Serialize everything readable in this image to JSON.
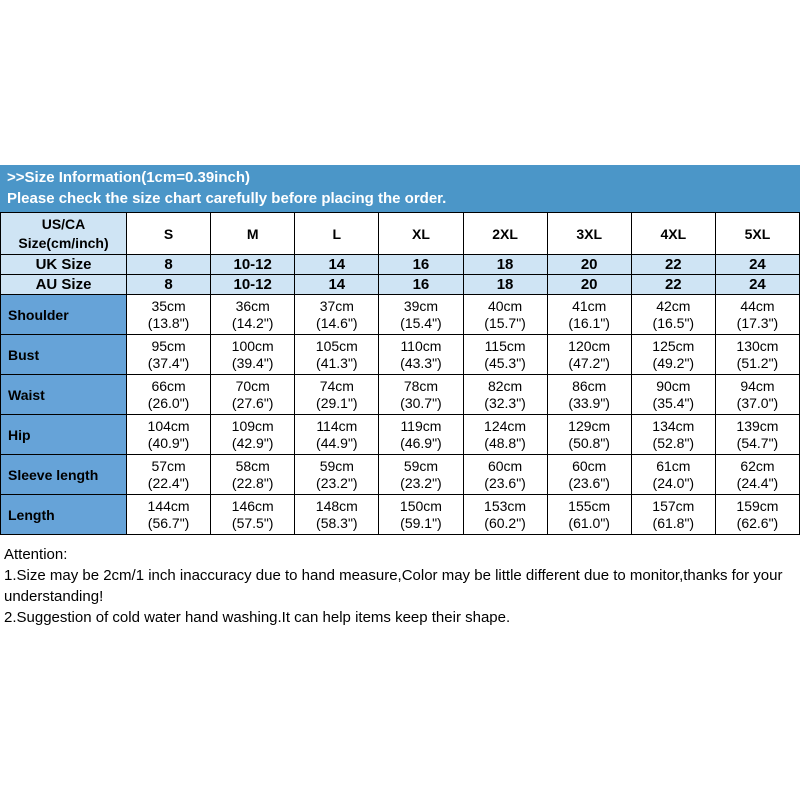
{
  "banner": {
    "line1": ">>Size Information(1cm=0.39inch)",
    "line2": "Please check the size chart carefully before placing the order."
  },
  "table": {
    "header": {
      "label": "US/CA Size(cm/inch)",
      "sizes": [
        "S",
        "M",
        "L",
        "XL",
        "2XL",
        "3XL",
        "4XL",
        "5XL"
      ]
    },
    "uk": {
      "label": "UK Size",
      "values": [
        "8",
        "10-12",
        "14",
        "16",
        "18",
        "20",
        "22",
        "24"
      ]
    },
    "au": {
      "label": "AU Size",
      "values": [
        "8",
        "10-12",
        "14",
        "16",
        "18",
        "20",
        "22",
        "24"
      ]
    },
    "rows": [
      {
        "label": "Shoulder",
        "values": [
          [
            "35cm",
            "(13.8\")"
          ],
          [
            "36cm",
            "(14.2\")"
          ],
          [
            "37cm",
            "(14.6\")"
          ],
          [
            "39cm",
            "(15.4\")"
          ],
          [
            "40cm",
            "(15.7\")"
          ],
          [
            "41cm",
            "(16.1\")"
          ],
          [
            "42cm",
            "(16.5\")"
          ],
          [
            "44cm",
            "(17.3\")"
          ]
        ]
      },
      {
        "label": "Bust",
        "values": [
          [
            "95cm",
            "(37.4\")"
          ],
          [
            "100cm",
            "(39.4\")"
          ],
          [
            "105cm",
            "(41.3\")"
          ],
          [
            "110cm",
            "(43.3\")"
          ],
          [
            "115cm",
            "(45.3\")"
          ],
          [
            "120cm",
            "(47.2\")"
          ],
          [
            "125cm",
            "(49.2\")"
          ],
          [
            "130cm",
            "(51.2\")"
          ]
        ]
      },
      {
        "label": "Waist",
        "values": [
          [
            "66cm",
            "(26.0\")"
          ],
          [
            "70cm",
            "(27.6\")"
          ],
          [
            "74cm",
            "(29.1\")"
          ],
          [
            "78cm",
            "(30.7\")"
          ],
          [
            "82cm",
            "(32.3\")"
          ],
          [
            "86cm",
            "(33.9\")"
          ],
          [
            "90cm",
            "(35.4\")"
          ],
          [
            "94cm",
            "(37.0\")"
          ]
        ]
      },
      {
        "label": "Hip",
        "values": [
          [
            "104cm",
            "(40.9\")"
          ],
          [
            "109cm",
            "(42.9\")"
          ],
          [
            "114cm",
            "(44.9\")"
          ],
          [
            "119cm",
            "(46.9\")"
          ],
          [
            "124cm",
            "(48.8\")"
          ],
          [
            "129cm",
            "(50.8\")"
          ],
          [
            "134cm",
            "(52.8\")"
          ],
          [
            "139cm",
            "(54.7\")"
          ]
        ]
      },
      {
        "label": "Sleeve length",
        "values": [
          [
            "57cm",
            "(22.4\")"
          ],
          [
            "58cm",
            "(22.8\")"
          ],
          [
            "59cm",
            "(23.2\")"
          ],
          [
            "59cm",
            "(23.2\")"
          ],
          [
            "60cm",
            "(23.6\")"
          ],
          [
            "60cm",
            "(23.6\")"
          ],
          [
            "61cm",
            "(24.0\")"
          ],
          [
            "62cm",
            "(24.4\")"
          ]
        ]
      },
      {
        "label": "Length",
        "values": [
          [
            "144cm",
            "(56.7\")"
          ],
          [
            "146cm",
            "(57.5\")"
          ],
          [
            "148cm",
            "(58.3\")"
          ],
          [
            "150cm",
            "(59.1\")"
          ],
          [
            "153cm",
            "(60.2\")"
          ],
          [
            "155cm",
            "(61.0\")"
          ],
          [
            "157cm",
            "(61.8\")"
          ],
          [
            "159cm",
            "(62.6\")"
          ]
        ]
      }
    ]
  },
  "attention": {
    "title": "Attention:",
    "note1": "1.Size may be 2cm/1 inch inaccuracy due to hand measure,Color may be little different due to monitor,thanks for your understanding!",
    "note2": "2.Suggestion of cold water hand washing.It can help items keep their shape."
  },
  "colors": {
    "banner_bg": "#4b96c8",
    "header_row_bg": "#cfe4f4",
    "label_col_bg": "#66a3d8",
    "border": "#000000"
  }
}
